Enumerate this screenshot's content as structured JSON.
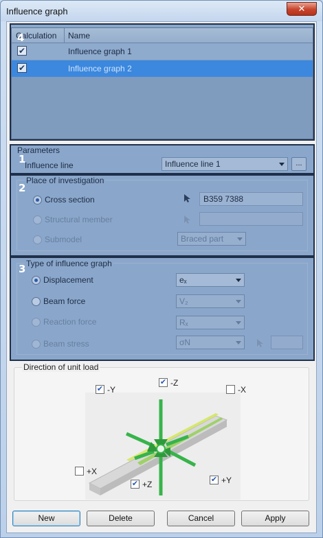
{
  "window": {
    "title": "Influence graph",
    "close_glyph": "✕"
  },
  "table": {
    "columns": [
      "Calculation",
      "Name"
    ],
    "rows": [
      {
        "checked": true,
        "name": "Influence graph 1"
      },
      {
        "checked": true,
        "name": "Influence graph 2"
      }
    ],
    "selected_row": 1
  },
  "overlay_numbers": [
    "4",
    "1",
    "2",
    "3"
  ],
  "parameters": {
    "title": "Parameters",
    "influence_line_label": "Influence line",
    "influence_line_value": "Influence line 1",
    "browse_label": "..."
  },
  "place": {
    "title": "Place of investigation",
    "options": [
      {
        "label": "Cross section",
        "selected": true,
        "enabled": true
      },
      {
        "label": "Structural member",
        "selected": false,
        "enabled": false
      },
      {
        "label": "Submodel",
        "selected": false,
        "enabled": false
      }
    ],
    "cross_section_value": "B359 7388",
    "structural_member_value": "",
    "submodel_value": "Braced part"
  },
  "type": {
    "title": "Type of influence graph",
    "options": [
      {
        "label": "Displacement",
        "selected": true,
        "enabled": true,
        "combo": "eₓ"
      },
      {
        "label": "Beam force",
        "selected": false,
        "enabled": true,
        "combo": "V₂"
      },
      {
        "label": "Reaction force",
        "selected": false,
        "enabled": false,
        "combo": "Rₓ"
      },
      {
        "label": "Beam stress",
        "selected": false,
        "enabled": false,
        "combo": "σN"
      }
    ]
  },
  "direction": {
    "title": "Direction of unit load",
    "checks": [
      {
        "label": "-Y",
        "checked": true
      },
      {
        "label": "-Z",
        "checked": true
      },
      {
        "label": "-X",
        "checked": false
      },
      {
        "label": "+X",
        "checked": false
      },
      {
        "label": "+Z",
        "checked": true
      },
      {
        "label": "+Y",
        "checked": true
      }
    ]
  },
  "buttons": {
    "new": "New",
    "delete": "Delete",
    "cancel": "Cancel",
    "apply": "Apply"
  },
  "colors": {
    "overlay": "#8aa7cb",
    "selection": "#3b88de",
    "beam_green": "#3fb54c"
  }
}
